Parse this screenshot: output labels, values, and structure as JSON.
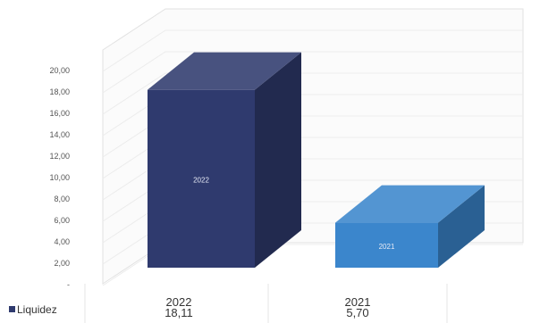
{
  "chart_data": {
    "type": "bar",
    "categories": [
      "2022",
      "2021"
    ],
    "series": [
      {
        "name": "Liquidez",
        "values": [
          18.11,
          5.7
        ]
      }
    ],
    "value_labels": [
      "18,11",
      "5,70"
    ],
    "bar_inner_labels": [
      "2022",
      "2021"
    ],
    "y_ticks": [
      "20,00",
      "18,00",
      "16,00",
      "14,00",
      "12,00",
      "10,00",
      "8,00",
      "6,00",
      "4,00",
      "2,00",
      "-"
    ],
    "ylim": [
      0,
      20
    ],
    "grid": true,
    "legend": "data-table-left",
    "style": "3d-column",
    "colors": {
      "bar_2022": "#2f3a6e",
      "bar_2021": "#3b86cc",
      "legend_marker": "#2f3a6e"
    }
  }
}
